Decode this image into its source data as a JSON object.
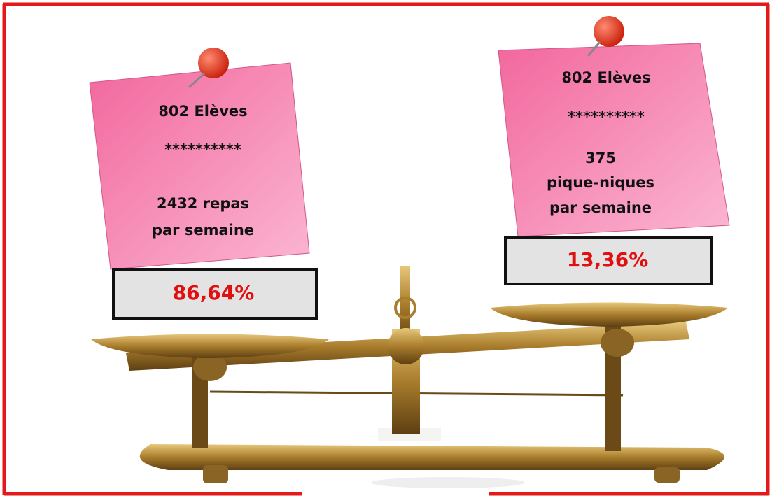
{
  "left_note": {
    "lines": [
      "802 Elèves",
      "**********",
      "2432 repas",
      "par semaine"
    ],
    "percentage": "86,64%"
  },
  "right_note": {
    "lines": [
      "802 Elèves",
      "**********",
      "375",
      "pique-niques",
      "par semaine"
    ],
    "percentage": "13,36%"
  }
}
